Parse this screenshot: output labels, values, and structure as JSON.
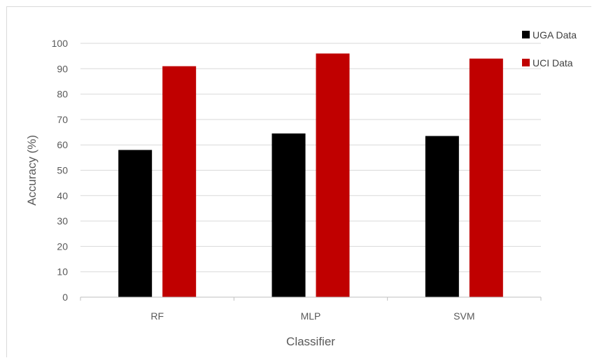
{
  "chart_data": {
    "type": "bar",
    "categories": [
      "RF",
      "MLP",
      "SVM"
    ],
    "series": [
      {
        "name": "UGA Data",
        "color": "#000000",
        "values": [
          58,
          64.5,
          63.5
        ]
      },
      {
        "name": "UCI Data",
        "color": "#c00000",
        "values": [
          91,
          96,
          94
        ]
      }
    ],
    "xlabel": "Classifier",
    "ylabel": "Accuracy (%)",
    "ylim": [
      0,
      100
    ],
    "yticks": [
      0,
      10,
      20,
      30,
      40,
      50,
      60,
      70,
      80,
      90,
      100
    ],
    "grid": true,
    "legend_position": "top-right"
  }
}
